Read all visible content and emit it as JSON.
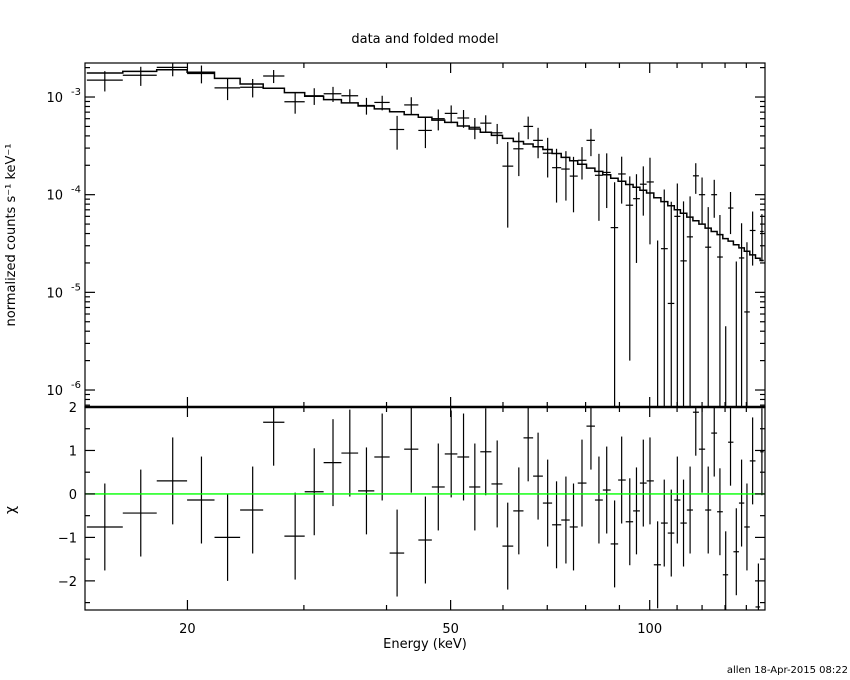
{
  "chart_data": {
    "type": "scatter",
    "title": "data and folded model",
    "footer": "allen 18-Apr-2015 08:22",
    "xlabel": "Energy (keV)",
    "x_scale": "log",
    "xlim": [
      14,
      149.4
    ],
    "xticks": [
      20,
      50,
      100
    ],
    "xtick_labels": [
      "20",
      "50",
      "100"
    ],
    "colors": {
      "data": "#000000",
      "model": "#000000",
      "zero_line": "#00ff00"
    },
    "top_panel": {
      "ylabel": "normalized counts s⁻¹ keV⁻¹",
      "y_scale": "log",
      "ylim": [
        6.7e-07,
        0.00223
      ],
      "yticks": [
        0.001,
        0.0001,
        1e-05,
        1e-06
      ],
      "ytick_labels": [
        {
          "base": "10",
          "exp": "-3"
        },
        {
          "base": "10",
          "exp": "-4"
        },
        {
          "base": "10",
          "exp": "-5"
        },
        {
          "base": "10",
          "exp": "-6"
        }
      ],
      "series": [
        {
          "kind": "data-with-errors"
        },
        {
          "kind": "model-step"
        }
      ]
    },
    "bottom_panel": {
      "ylabel": "χ",
      "ylim": [
        -2.67,
        2
      ],
      "yticks": [
        2,
        1,
        0,
        -1,
        -2
      ],
      "ytick_labels": [
        "2",
        "1",
        "0",
        "−1",
        "−2"
      ],
      "zero_line": 0
    },
    "energy": [
      15.0,
      17.0,
      19.0,
      21.0,
      23.0,
      25.1,
      27.0,
      29.1,
      31.1,
      33.2,
      35.2,
      37.3,
      39.4,
      41.5,
      43.6,
      45.8,
      47.9,
      50.1,
      52.3,
      54.4,
      56.5,
      58.8,
      61.0,
      63.4,
      65.5,
      67.8,
      70.1,
      72.3,
      74.7,
      76.7,
      79.0,
      81.5,
      83.8,
      86.1,
      88.5,
      90.7,
      93.3,
      95.5,
      97.8,
      100.1,
      102.8,
      105.2,
      107.8,
      110.1,
      112.5,
      115.1,
      117.4,
      120.0,
      122.6,
      125.2,
      127.7,
      130.3,
      132.5,
      135.2,
      137.7,
      140.3,
      143.1,
      146.0,
      147.8
    ],
    "counts": [
      0.00149,
      0.00167,
      0.00201,
      0.00174,
      0.00124,
      0.00126,
      0.00164,
      0.000895,
      0.00103,
      0.00108,
      0.00103,
      0.00082,
      0.00088,
      0.000465,
      0.00083,
      0.000455,
      0.0006,
      0.00068,
      0.00061,
      0.00049,
      0.00054,
      0.00043,
      0.000196,
      0.000295,
      0.0005,
      0.00036,
      0.000266,
      0.000189,
      0.000183,
      0.000155,
      0.000225,
      0.00036,
      0.000158,
      0.000169,
      4.6e-05,
      0.000163,
      7.8e-05,
      9.1e-05,
      0.000128,
      0.000135,
      -5.9e-05,
      2.8e-05,
      7.7e-06,
      6e-05,
      2.1e-05,
      3.7e-05,
      0.000156,
      0.0001,
      2.9e-05,
      0.0001,
      2.3e-05,
      -3.1e-05,
      7.3e-05,
      -1e-05,
      2.25e-05,
      6.3e-06,
      4.3e-05,
      -3.6e-05,
      4.2e-05
    ],
    "counts_err": [
      0.00035,
      0.00037,
      0.00038,
      0.00036,
      0.00031,
      0.00027,
      0.00025,
      0.00022,
      0.0002,
      0.00019,
      0.00017,
      0.00016,
      0.00015,
      0.000176,
      0.000165,
      0.000155,
      0.000145,
      0.00014,
      0.000126,
      0.00012,
      0.00011,
      0.0001,
      0.00015,
      0.00014,
      0.00013,
      0.000124,
      0.000116,
      0.000106,
      9.6e-05,
      8.9e-05,
      8.2e-05,
      0.000112,
      0.000104,
      9.6e-05,
      8.8e-05,
      8.2e-05,
      7.6e-05,
      7.1e-05,
      6.7e-05,
      0.000104,
      9.3e-05,
      8.5e-05,
      7.7e-05,
      7e-05,
      6.45e-05,
      5.9e-05,
      5.4e-05,
      5e-05,
      4.55e-05,
      4.2e-05,
      3.9e-05,
      3.55e-05,
      3.35e-05,
      3.07e-05,
      2.85e-05,
      2.63e-05,
      2.42e-05,
      2.23e-05,
      2.12e-05
    ],
    "model": [
      0.00176,
      0.00183,
      0.0019,
      0.00179,
      0.00155,
      0.00136,
      0.00123,
      0.00111,
      0.00102,
      0.00094,
      0.00087,
      0.00081,
      0.000755,
      0.000705,
      0.00066,
      0.00062,
      0.00058,
      0.00055,
      0.000505,
      0.00047,
      0.000435,
      0.000405,
      0.000377,
      0.00035,
      0.00033,
      0.000309,
      0.00029,
      0.000264,
      0.000241,
      0.000223,
      0.000205,
      0.000187,
      0.000173,
      0.00016,
      0.000147,
      0.000137,
      0.000127,
      0.000119,
      0.000111,
      0.000104,
      9.3e-05,
      8.5e-05,
      7.7e-05,
      7e-05,
      6.45e-05,
      5.9e-05,
      5.4e-05,
      5e-05,
      4.55e-05,
      4.2e-05,
      3.9e-05,
      3.55e-05,
      3.35e-05,
      3.07e-05,
      2.85e-05,
      2.63e-05,
      2.42e-05,
      2.23e-05,
      2.12e-05
    ],
    "chi": [
      -0.76,
      -0.44,
      0.3,
      -0.14,
      -1.0,
      -0.37,
      1.65,
      -0.97,
      0.05,
      0.72,
      0.94,
      0.07,
      0.85,
      -1.36,
      1.03,
      -1.06,
      0.16,
      0.92,
      0.85,
      0.16,
      0.97,
      0.23,
      -1.2,
      -0.39,
      1.29,
      0.41,
      -0.21,
      -0.71,
      -0.6,
      -0.76,
      0.25,
      1.56,
      -0.14,
      0.09,
      -1.15,
      0.32,
      -0.64,
      -0.39,
      0.25,
      0.3,
      -1.63,
      -0.67,
      -0.9,
      -0.14,
      -0.67,
      -0.37,
      1.88,
      1.03,
      -0.37,
      1.4,
      -0.41,
      -1.86,
      1.19,
      -1.33,
      -0.21,
      -0.76,
      0.76,
      -2.6,
      0.97
    ],
    "chi_err": 1
  }
}
